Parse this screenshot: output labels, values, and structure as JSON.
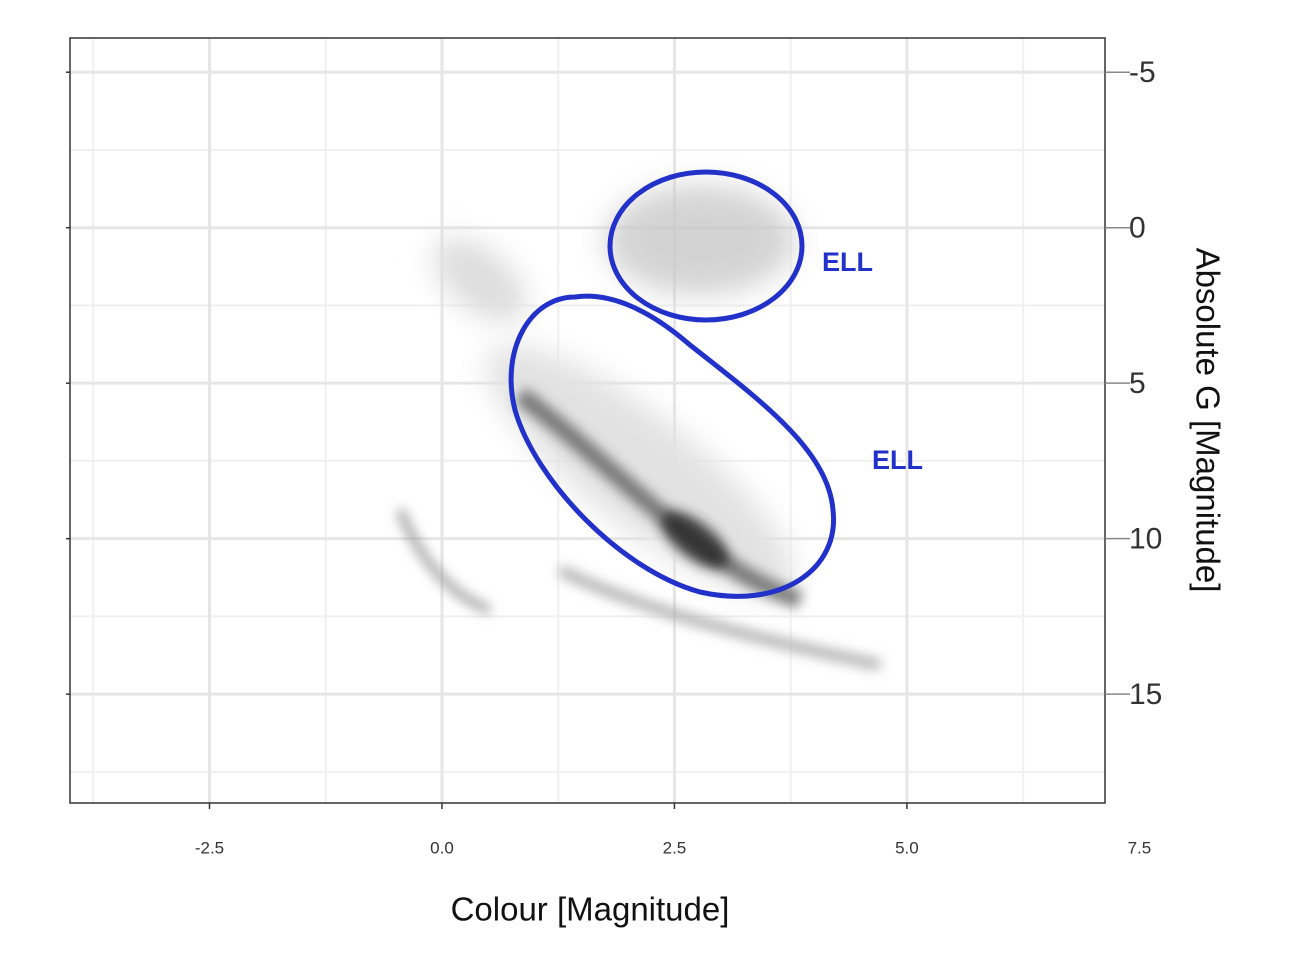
{
  "chart_data": {
    "type": "density",
    "x_label": "Colour [Magnitude]",
    "y_label": "Absolute G [Magnitude]",
    "xlim": [
      -4,
      7.13
    ],
    "ylim": [
      -6.1,
      18.5
    ],
    "y_reversed": true,
    "xticks": [
      {
        "value": -2.5,
        "label": "-2.5"
      },
      {
        "value": 0,
        "label": "0.0"
      },
      {
        "value": 2.5,
        "label": "2.5"
      },
      {
        "value": 5,
        "label": "5.0"
      },
      {
        "value": 7.5,
        "label": "7.5"
      }
    ],
    "yticks": [
      -5,
      0,
      5,
      10,
      15
    ],
    "grid": true,
    "annotations": [
      "ELL",
      "ELL"
    ]
  }
}
